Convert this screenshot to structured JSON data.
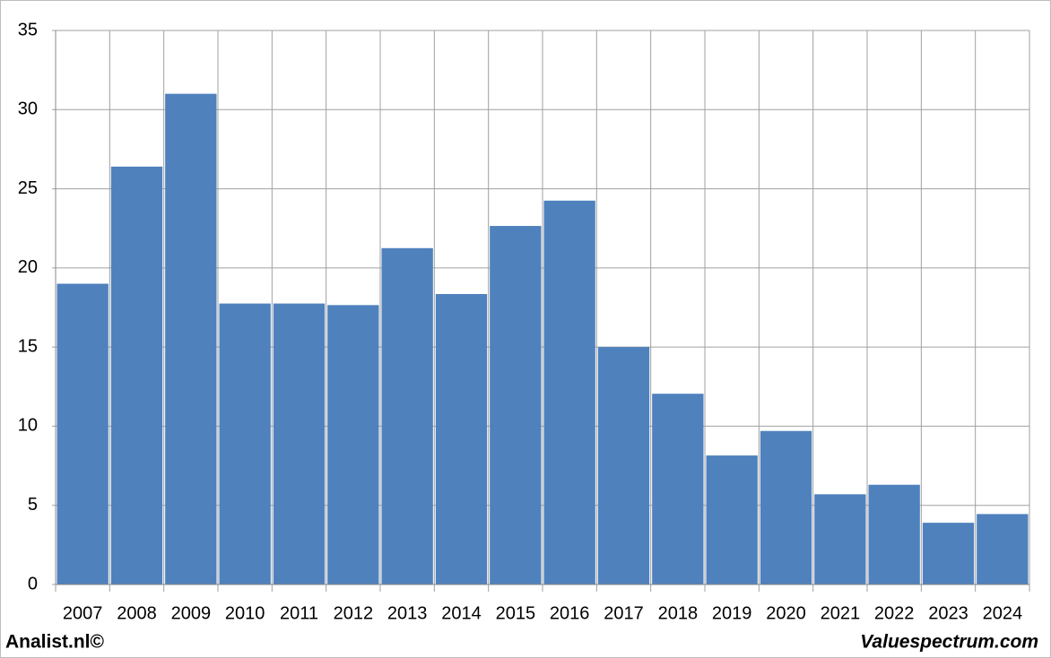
{
  "chart_data": {
    "type": "bar",
    "categories": [
      "2007",
      "2008",
      "2009",
      "2010",
      "2011",
      "2012",
      "2013",
      "2014",
      "2015",
      "2016",
      "2017",
      "2018",
      "2019",
      "2020",
      "2021",
      "2022",
      "2023",
      "2024"
    ],
    "values": [
      19.0,
      26.4,
      31.0,
      17.75,
      17.75,
      17.65,
      21.25,
      18.35,
      22.65,
      24.25,
      15.0,
      12.05,
      8.15,
      9.7,
      5.7,
      6.3,
      3.9,
      4.45
    ],
    "color": "#4f81bd",
    "ylim": [
      0,
      35
    ],
    "yticks": [
      0,
      5,
      10,
      15,
      20,
      25,
      30,
      35
    ],
    "grid": true,
    "footer_left": "Analist.nl©",
    "footer_right": "Valuespectrum.com"
  }
}
